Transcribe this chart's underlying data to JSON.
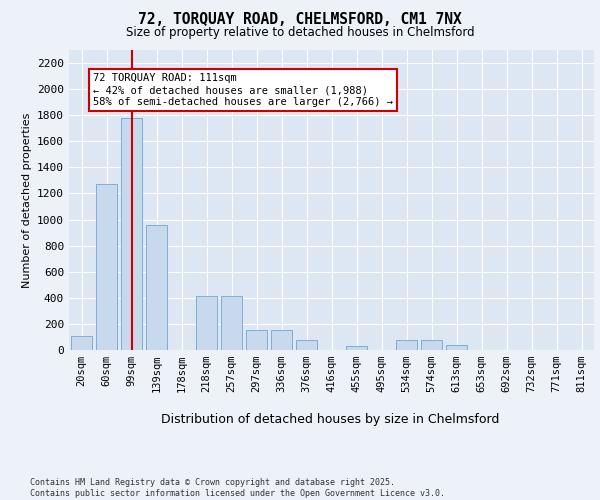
{
  "title_line1": "72, TORQUAY ROAD, CHELMSFORD, CM1 7NX",
  "title_line2": "Size of property relative to detached houses in Chelmsford",
  "xlabel": "Distribution of detached houses by size in Chelmsford",
  "ylabel": "Number of detached properties",
  "categories": [
    "20sqm",
    "60sqm",
    "99sqm",
    "139sqm",
    "178sqm",
    "218sqm",
    "257sqm",
    "297sqm",
    "336sqm",
    "376sqm",
    "416sqm",
    "455sqm",
    "495sqm",
    "534sqm",
    "574sqm",
    "613sqm",
    "653sqm",
    "692sqm",
    "732sqm",
    "771sqm",
    "811sqm"
  ],
  "values": [
    110,
    1270,
    1780,
    960,
    0,
    415,
    415,
    150,
    150,
    75,
    0,
    30,
    0,
    75,
    75,
    35,
    0,
    0,
    0,
    0,
    0
  ],
  "bar_color": "#c8d9ee",
  "bar_edge_color": "#7bafd4",
  "vline_x_index": 2,
  "vline_color": "#cc0000",
  "annotation_line1": "72 TORQUAY ROAD: 111sqm",
  "annotation_line2": "← 42% of detached houses are smaller (1,988)",
  "annotation_line3": "58% of semi-detached houses are larger (2,766) →",
  "annotation_box_color": "#cc0000",
  "ylim": [
    0,
    2300
  ],
  "yticks": [
    0,
    200,
    400,
    600,
    800,
    1000,
    1200,
    1400,
    1600,
    1800,
    2000,
    2200
  ],
  "background_color": "#dde6f3",
  "grid_color": "#ffffff",
  "fig_bg_color": "#edf2f9",
  "footer_line1": "Contains HM Land Registry data © Crown copyright and database right 2025.",
  "footer_line2": "Contains public sector information licensed under the Open Government Licence v3.0."
}
